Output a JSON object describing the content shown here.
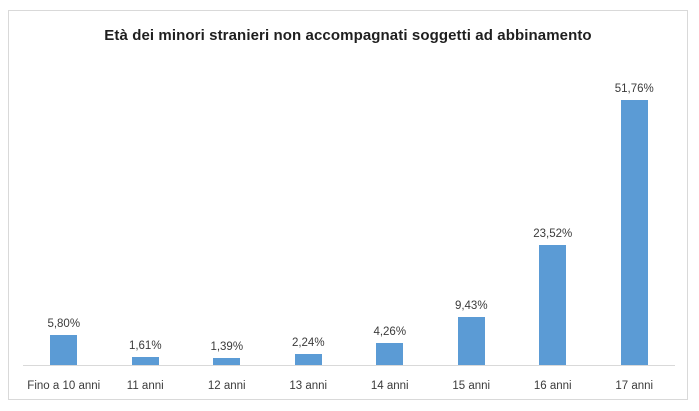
{
  "chart_data": {
    "type": "bar",
    "title": "Età dei minori stranieri non accompagnati soggetti ad abbinamento",
    "categories": [
      "Fino a 10 anni",
      "11 anni",
      "12 anni",
      "13 anni",
      "14 anni",
      "15 anni",
      "16 anni",
      "17 anni"
    ],
    "values": [
      5.8,
      1.61,
      1.39,
      2.24,
      4.26,
      9.43,
      23.52,
      51.76
    ],
    "value_labels": [
      "5,80%",
      "1,61%",
      "1,39%",
      "2,24%",
      "4,26%",
      "9,43%",
      "23,52%",
      "51,76%"
    ],
    "xlabel": "",
    "ylabel": "",
    "ylim": [
      0,
      55
    ],
    "grid": false,
    "legend_position": "none",
    "data_labels_visible": true,
    "bar_color": "#5b9bd5",
    "axis_line_color": "#d9d9d9",
    "frame_border_color": "#d9d9d9",
    "label_text_color": "#3b3b3b",
    "title_text_color": "#1f1f1f"
  }
}
